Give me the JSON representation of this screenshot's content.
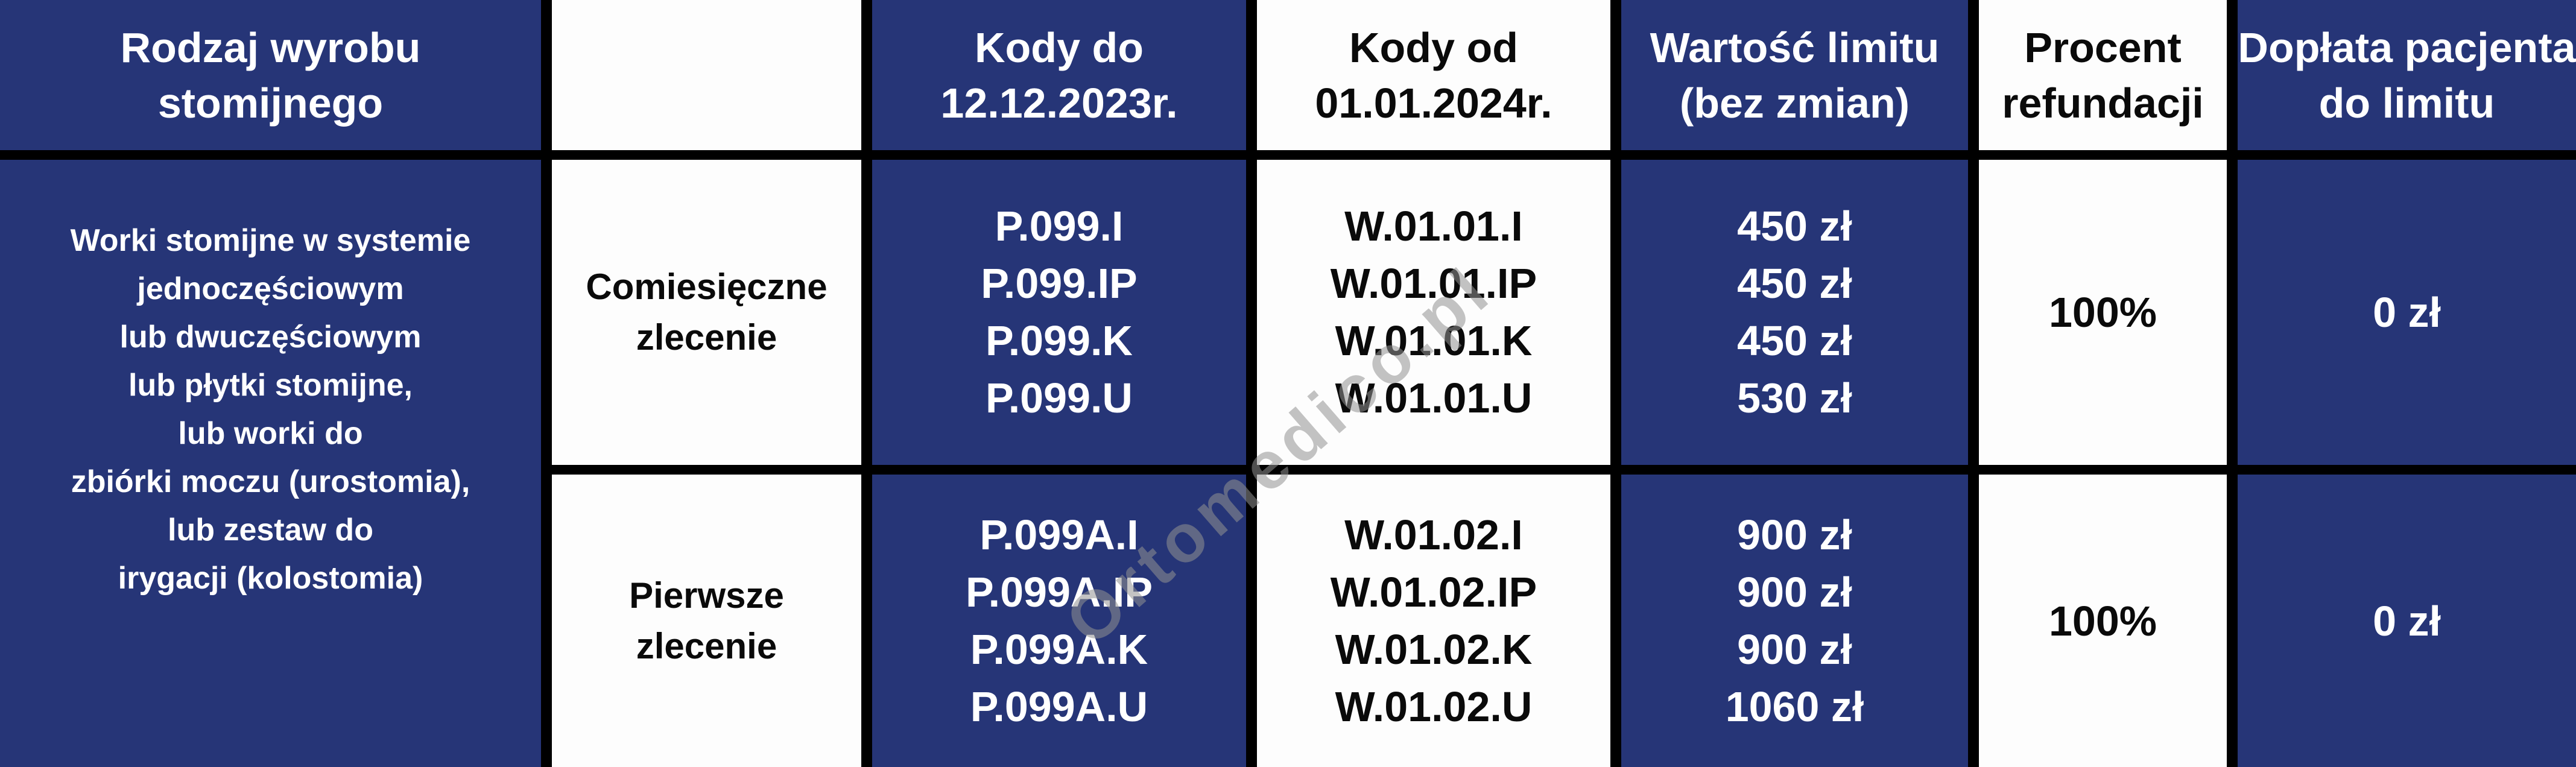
{
  "watermark": "Ortomedico.pl",
  "colors": {
    "navy": "#263577",
    "white": "#fdfdfd",
    "grid_line": "#000000",
    "watermark_grey": "#919191"
  },
  "table": {
    "headers": {
      "product_type": "Rodzaj wyrobu\nstomijnego",
      "blank": "",
      "codes_old": "Kody do\n12.12.2023r.",
      "codes_new": "Kody od\n01.01.2024r.",
      "limit_value": "Wartość limitu\n(bez zmian)",
      "refund_percent": "Procent\nrefundacji",
      "patient_copay": "Dopłata pacjenta\ndo limitu"
    },
    "product_type": "Worki stomijne w systemie\njednoczęściowym\nlub dwuczęściowym\nlub płytki stomijne,\nlub worki do\nzbiórki moczu (urostomia),\nlub zestaw do\nirygacji (kolostomia)",
    "rows": [
      {
        "order_type": "Comiesięczne\nzlecenie",
        "codes_old": "P.099.I\nP.099.IP\nP.099.K\nP.099.U",
        "codes_new": "W.01.01.I\nW.01.01.IP\nW.01.01.K\nW.01.01.U",
        "limit_values": "450 zł\n450 zł\n450 zł\n530 zł",
        "refund_percent": "100%",
        "patient_copay": "0 zł"
      },
      {
        "order_type": "Pierwsze\nzlecenie",
        "codes_old": "P.099A.I\nP.099A.IP\nP.099A.K\nP.099A.U",
        "codes_new": "W.01.02.I\nW.01.02.IP\nW.01.02.K\nW.01.02.U",
        "limit_values": "900 zł\n900 zł\n900 zł\n1060 zł",
        "refund_percent": "100%",
        "patient_copay": "0 zł"
      }
    ]
  }
}
